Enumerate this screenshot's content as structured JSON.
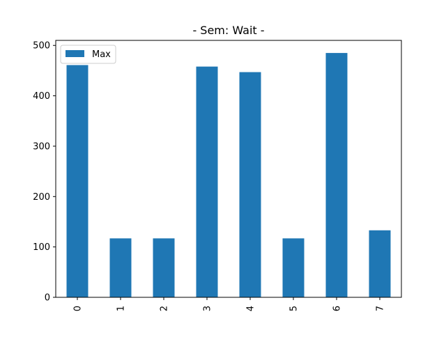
{
  "chart_data": {
    "type": "bar",
    "title": "- Sem: Wait -",
    "xlabel": "",
    "ylabel": "",
    "categories": [
      "0",
      "1",
      "2",
      "3",
      "4",
      "5",
      "6",
      "7"
    ],
    "series": [
      {
        "name": "Max",
        "values": [
          461,
          117,
          117,
          458,
          447,
          117,
          485,
          133
        ],
        "color": "#1f77b4"
      }
    ],
    "ylim": [
      0,
      510
    ],
    "yticks": [
      0,
      100,
      200,
      300,
      400,
      500
    ],
    "grid": false,
    "legend_position": "upper-left",
    "xtick_rotation": "vertical"
  }
}
